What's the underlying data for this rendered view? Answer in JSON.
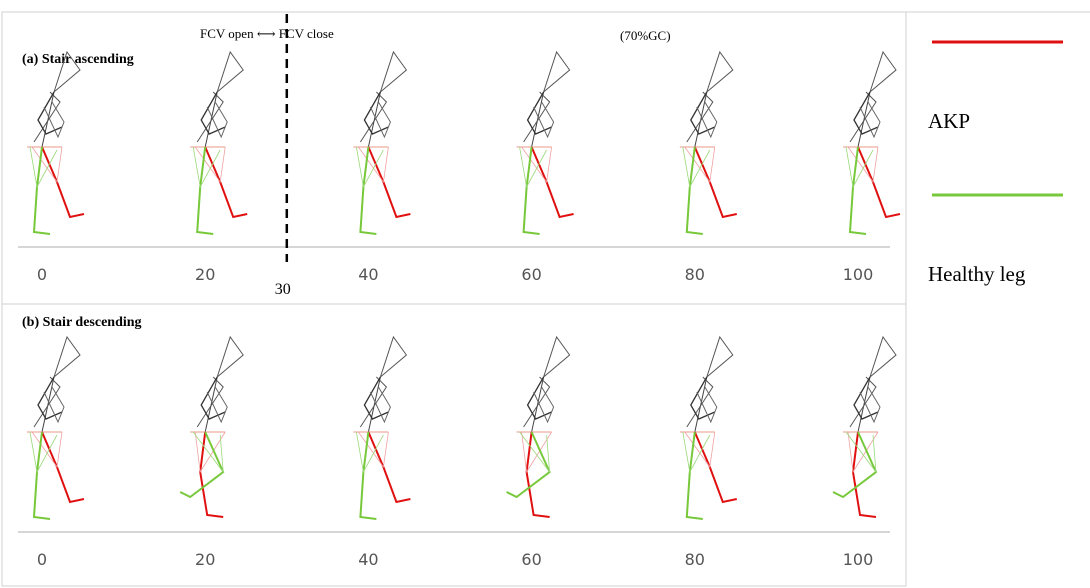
{
  "panels": [
    {
      "label": "(a) Stair ascending",
      "axis_ticks": [
        0,
        20,
        40,
        60,
        80,
        100
      ]
    },
    {
      "label": "(b) Stair descending",
      "axis_ticks": [
        0,
        20,
        40,
        60,
        80,
        100
      ]
    }
  ],
  "annotations": {
    "fcv": "FCV open ⟷ FCV close",
    "gc": "(70%GC)",
    "boundary": 30
  },
  "legend": [
    {
      "name": "AKP",
      "color": "#e01010"
    },
    {
      "name": "Healthy leg",
      "color": "#77c83a"
    }
  ]
}
